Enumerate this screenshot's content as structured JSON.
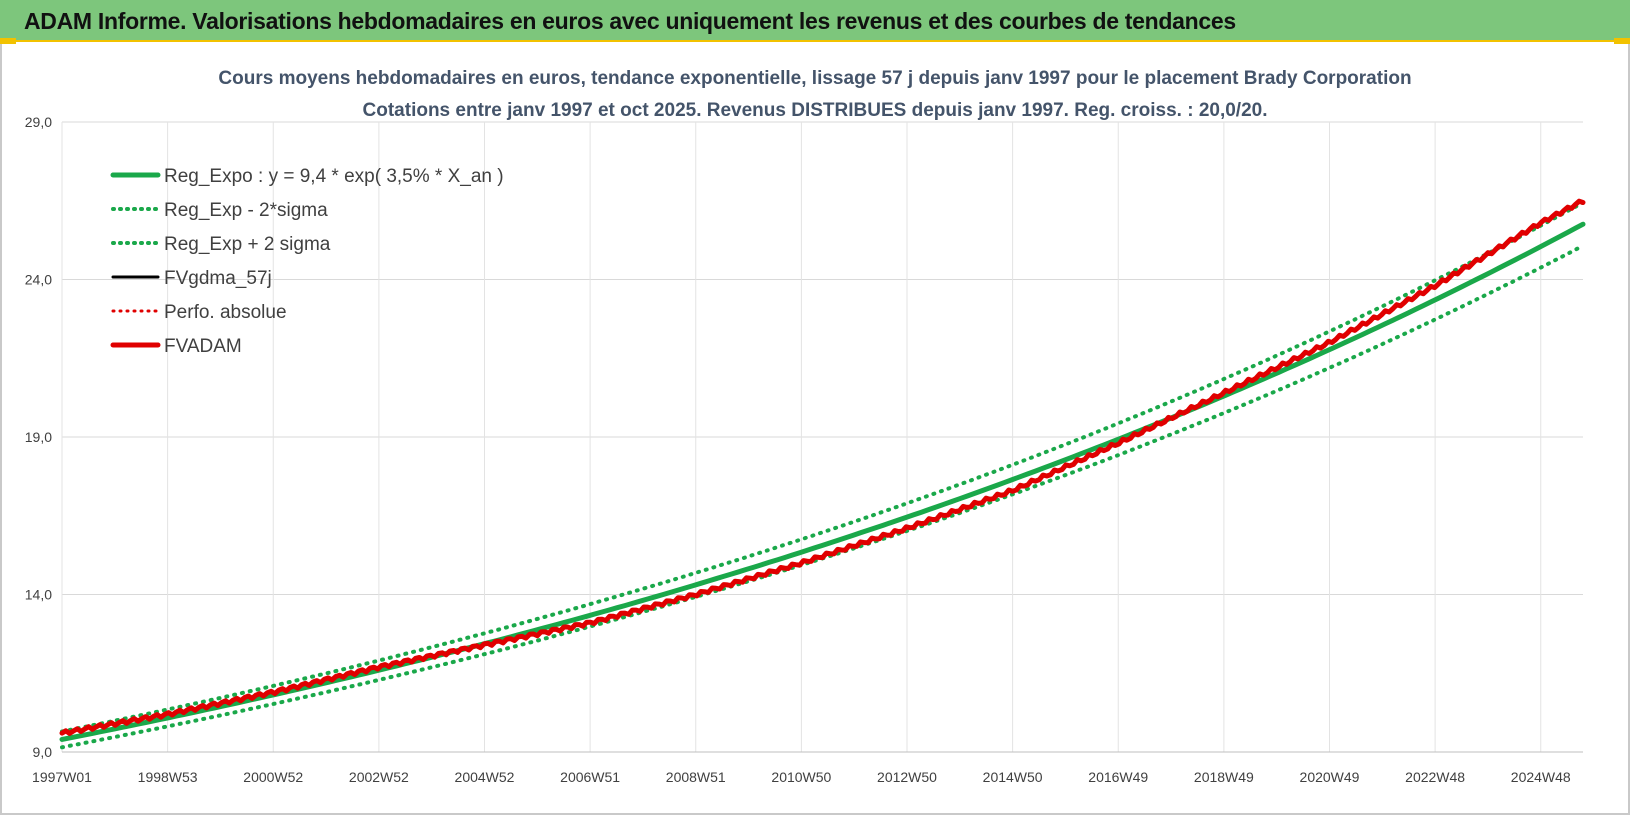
{
  "banner": {
    "title": "ADAM Informe. Valorisations hebdomadaires en euros avec uniquement les revenus et des courbes de tendances"
  },
  "chart_data": {
    "type": "line",
    "title": "Cours moyens hebdomadaires en euros, tendance exponentielle, lissage 57 j depuis janv 1997 pour le placement Brady Corporation",
    "subtitle": "Cotations entre janv 1997 et oct 2025. Revenus DISTRIBUES depuis janv 1997.  Reg. croiss. : 20,0/20.",
    "xlabel": "",
    "ylabel": "",
    "ylim": [
      9.0,
      29.0
    ],
    "y_ticks": [
      "9,0",
      "14,0",
      "19,0",
      "24,0",
      "29,0"
    ],
    "x_ticks": [
      "1997W01",
      "1998W53",
      "2000W52",
      "2002W52",
      "2004W52",
      "2006W51",
      "2008W51",
      "2010W50",
      "2012W50",
      "2014W50",
      "2016W49",
      "2018W49",
      "2020W49",
      "2022W48",
      "2024W48"
    ],
    "x_range": [
      1997.0,
      2025.8
    ],
    "grid": true,
    "legend_position": "top-left",
    "series": [
      {
        "name": "Reg_Expo : y = 9,4 * exp( 3,5% *  X_an )",
        "color": "#1aa84a",
        "style": "solid",
        "width": 5,
        "model": {
          "a": 9.4,
          "k": 0.035,
          "x0": 1997.0
        }
      },
      {
        "name": "Reg_Exp - 2*sigma",
        "color": "#1aa84a",
        "style": "dotted",
        "width": 4,
        "model": {
          "a": 9.15,
          "k": 0.035,
          "x0": 1997.0
        }
      },
      {
        "name": "Reg_Exp + 2 sigma",
        "color": "#1aa84a",
        "style": "dotted",
        "width": 4,
        "model": {
          "a": 9.65,
          "k": 0.035,
          "x0": 1997.0
        }
      },
      {
        "name": "FVgdma_57j",
        "color": "#000000",
        "style": "solid",
        "width": 3,
        "show_line": false
      },
      {
        "name": "Perfo. absolue",
        "color": "#e00000",
        "style": "dotted",
        "width": 3,
        "show_line": false
      },
      {
        "name": "FVADAM",
        "color": "#e00000",
        "style": "solid",
        "width": 5,
        "x": [
          1997.0,
          1999.0,
          2001.0,
          2003.0,
          2005.0,
          2007.0,
          2009.0,
          2011.0,
          2013.0,
          2015.0,
          2017.0,
          2019.0,
          2021.0,
          2023.0,
          2025.0,
          2025.8
        ],
        "y": [
          9.6,
          10.2,
          10.9,
          11.7,
          12.4,
          13.1,
          14.0,
          15.0,
          16.1,
          17.3,
          18.8,
          20.4,
          22.0,
          23.8,
          25.8,
          26.5
        ]
      }
    ]
  }
}
